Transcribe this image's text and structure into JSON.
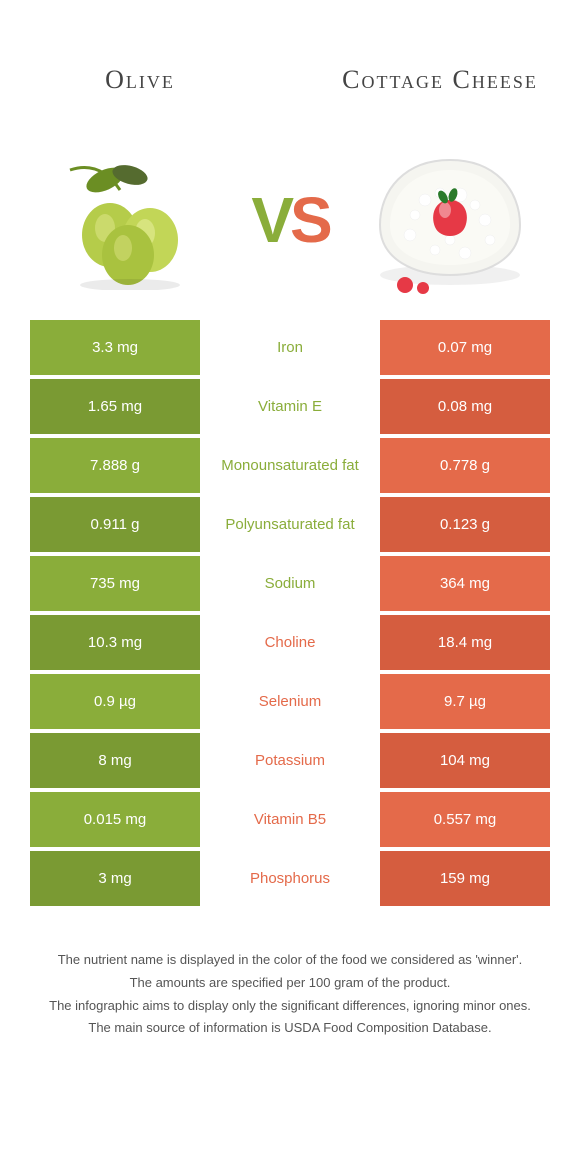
{
  "colors": {
    "olive": "#8aad3a",
    "cheese": "#e46a4a",
    "olive_dark": "#7a9a33",
    "cheese_dark": "#d55d3f"
  },
  "titles": {
    "left": "Olive",
    "right": "Cottage Cheese"
  },
  "vs": {
    "v": "V",
    "s": "S"
  },
  "rows": [
    {
      "left": "3.3 mg",
      "label": "Iron",
      "right": "0.07 mg",
      "winner": "left"
    },
    {
      "left": "1.65 mg",
      "label": "Vitamin E",
      "right": "0.08 mg",
      "winner": "left"
    },
    {
      "left": "7.888 g",
      "label": "Monounsaturated fat",
      "right": "0.778 g",
      "winner": "left"
    },
    {
      "left": "0.911 g",
      "label": "Polyunsaturated fat",
      "right": "0.123 g",
      "winner": "left"
    },
    {
      "left": "735 mg",
      "label": "Sodium",
      "right": "364 mg",
      "winner": "left"
    },
    {
      "left": "10.3 mg",
      "label": "Choline",
      "right": "18.4 mg",
      "winner": "right"
    },
    {
      "left": "0.9 µg",
      "label": "Selenium",
      "right": "9.7 µg",
      "winner": "right"
    },
    {
      "left": "8 mg",
      "label": "Potassium",
      "right": "104 mg",
      "winner": "right"
    },
    {
      "left": "0.015 mg",
      "label": "Vitamin B5",
      "right": "0.557 mg",
      "winner": "right"
    },
    {
      "left": "3 mg",
      "label": "Phosphorus",
      "right": "159 mg",
      "winner": "right"
    }
  ],
  "footer": [
    "The nutrient name is displayed in the color of the food we considered as 'winner'.",
    "The amounts are specified per 100 gram of the product.",
    "The infographic aims to display only the significant differences, ignoring minor ones.",
    "The main source of information is USDA Food Composition Database."
  ]
}
